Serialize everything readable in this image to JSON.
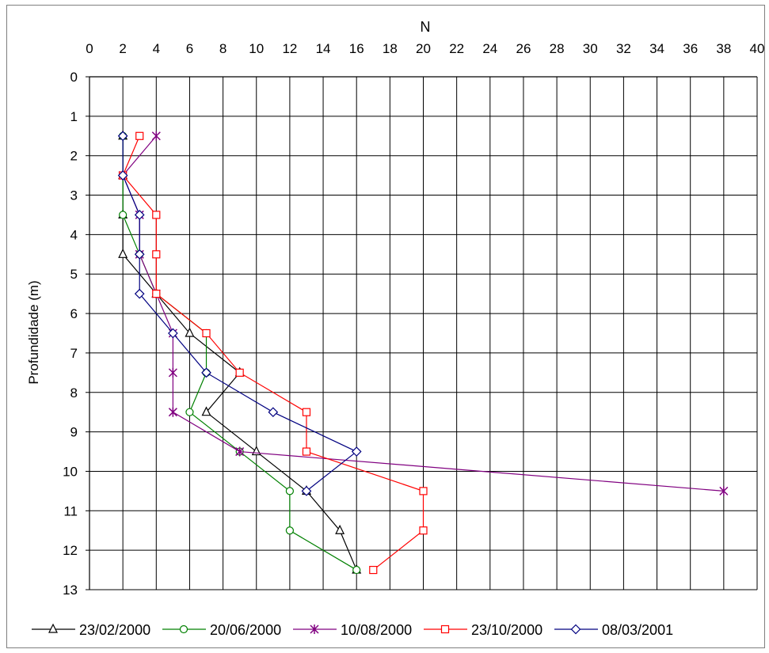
{
  "chart_data": {
    "type": "scatter",
    "title": "",
    "xlabel": "N",
    "ylabel": "Profundidade (m)",
    "xlim": [
      0,
      40
    ],
    "ylim": [
      0,
      13
    ],
    "x_ticks": [
      0,
      2,
      4,
      6,
      8,
      10,
      12,
      14,
      16,
      18,
      20,
      22,
      24,
      26,
      28,
      30,
      32,
      34,
      36,
      38,
      40
    ],
    "y_ticks": [
      0,
      1,
      2,
      3,
      4,
      5,
      6,
      7,
      8,
      9,
      10,
      11,
      12,
      13
    ],
    "x_axis_position": "top",
    "y_axis_inverted": true,
    "grid": true,
    "legend_position": "bottom",
    "series": [
      {
        "name": "23/02/2000",
        "color": "#000000",
        "marker": "triangle",
        "points": [
          [
            2,
            1.5
          ],
          [
            2,
            2.5
          ],
          [
            2,
            3.5
          ],
          [
            2,
            4.5
          ],
          [
            4,
            5.5
          ],
          [
            6,
            6.5
          ],
          [
            9,
            7.5
          ],
          [
            7,
            8.5
          ],
          [
            10,
            9.5
          ],
          [
            13,
            10.5
          ],
          [
            15,
            11.5
          ],
          [
            16,
            12.5
          ]
        ]
      },
      {
        "name": "20/06/2000",
        "color": "#008000",
        "marker": "circle",
        "points": [
          [
            2,
            1.5
          ],
          [
            2,
            2.5
          ],
          [
            2,
            3.5
          ],
          [
            3,
            4.5
          ],
          [
            4,
            5.5
          ],
          [
            7,
            6.5
          ],
          [
            7,
            7.5
          ],
          [
            6,
            8.5
          ],
          [
            9,
            9.5
          ],
          [
            12,
            10.5
          ],
          [
            12,
            11.5
          ],
          [
            16,
            12.5
          ]
        ]
      },
      {
        "name": "10/08/2000",
        "color": "#800080",
        "marker": "star",
        "points": [
          [
            4,
            1.5
          ],
          [
            2,
            2.5
          ],
          [
            3,
            3.5
          ],
          [
            3,
            4.5
          ],
          [
            4,
            5.5
          ],
          [
            5,
            6.5
          ],
          [
            5,
            7.5
          ],
          [
            5,
            8.5
          ],
          [
            9,
            9.5
          ],
          [
            38,
            10.5
          ]
        ]
      },
      {
        "name": "23/10/2000",
        "color": "#ff0000",
        "marker": "square",
        "points": [
          [
            3,
            1.5
          ],
          [
            2,
            2.5
          ],
          [
            4,
            3.5
          ],
          [
            4,
            4.5
          ],
          [
            4,
            5.5
          ],
          [
            7,
            6.5
          ],
          [
            9,
            7.5
          ],
          [
            13,
            8.5
          ],
          [
            13,
            9.5
          ],
          [
            20,
            10.5
          ],
          [
            20,
            11.5
          ],
          [
            17,
            12.5
          ]
        ]
      },
      {
        "name": "08/03/2001",
        "color": "#000080",
        "marker": "diamond",
        "points": [
          [
            2,
            1.5
          ],
          [
            2,
            2.5
          ],
          [
            3,
            3.5
          ],
          [
            3,
            4.5
          ],
          [
            3,
            5.5
          ],
          [
            5,
            6.5
          ],
          [
            7,
            7.5
          ],
          [
            11,
            8.5
          ],
          [
            16,
            9.5
          ],
          [
            13,
            10.5
          ]
        ]
      }
    ]
  }
}
